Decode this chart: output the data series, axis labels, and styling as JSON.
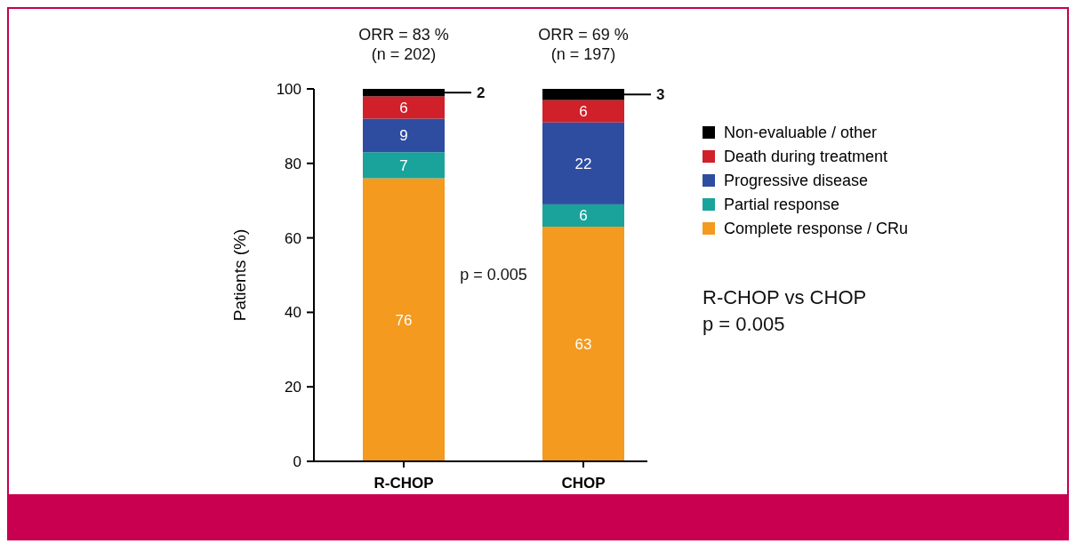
{
  "chart_data": {
    "type": "bar",
    "stacked": true,
    "categories": [
      "R-CHOP",
      "CHOP"
    ],
    "ylabel": "Patients (%)",
    "ylim": [
      0,
      100
    ],
    "yticks": [
      0,
      20,
      40,
      60,
      80,
      100
    ],
    "legend": "right",
    "data_labels": true,
    "grid": false,
    "series": [
      {
        "name": "Complete response / CRu",
        "color": "#f39a1f",
        "values": [
          76,
          63
        ]
      },
      {
        "name": "Partial response",
        "color": "#1aa39a",
        "values": [
          7,
          6
        ]
      },
      {
        "name": "Progressive disease",
        "color": "#2e4da0",
        "values": [
          9,
          22
        ]
      },
      {
        "name": "Death during treatment",
        "color": "#d0202a",
        "values": [
          6,
          6
        ]
      },
      {
        "name": "Non-evaluable / other",
        "color": "#000000",
        "values": [
          2,
          3
        ]
      }
    ],
    "annotations": [
      {
        "text": "ORR = 83 %\n(n = 202)",
        "x": "R-CHOP",
        "y": 100
      },
      {
        "text": "ORR = 69 %\n(n = 197)",
        "x": "CHOP",
        "y": 100
      },
      "p = 0.005",
      "R-CHOP vs CHOP\np = 0.005"
    ]
  }
}
